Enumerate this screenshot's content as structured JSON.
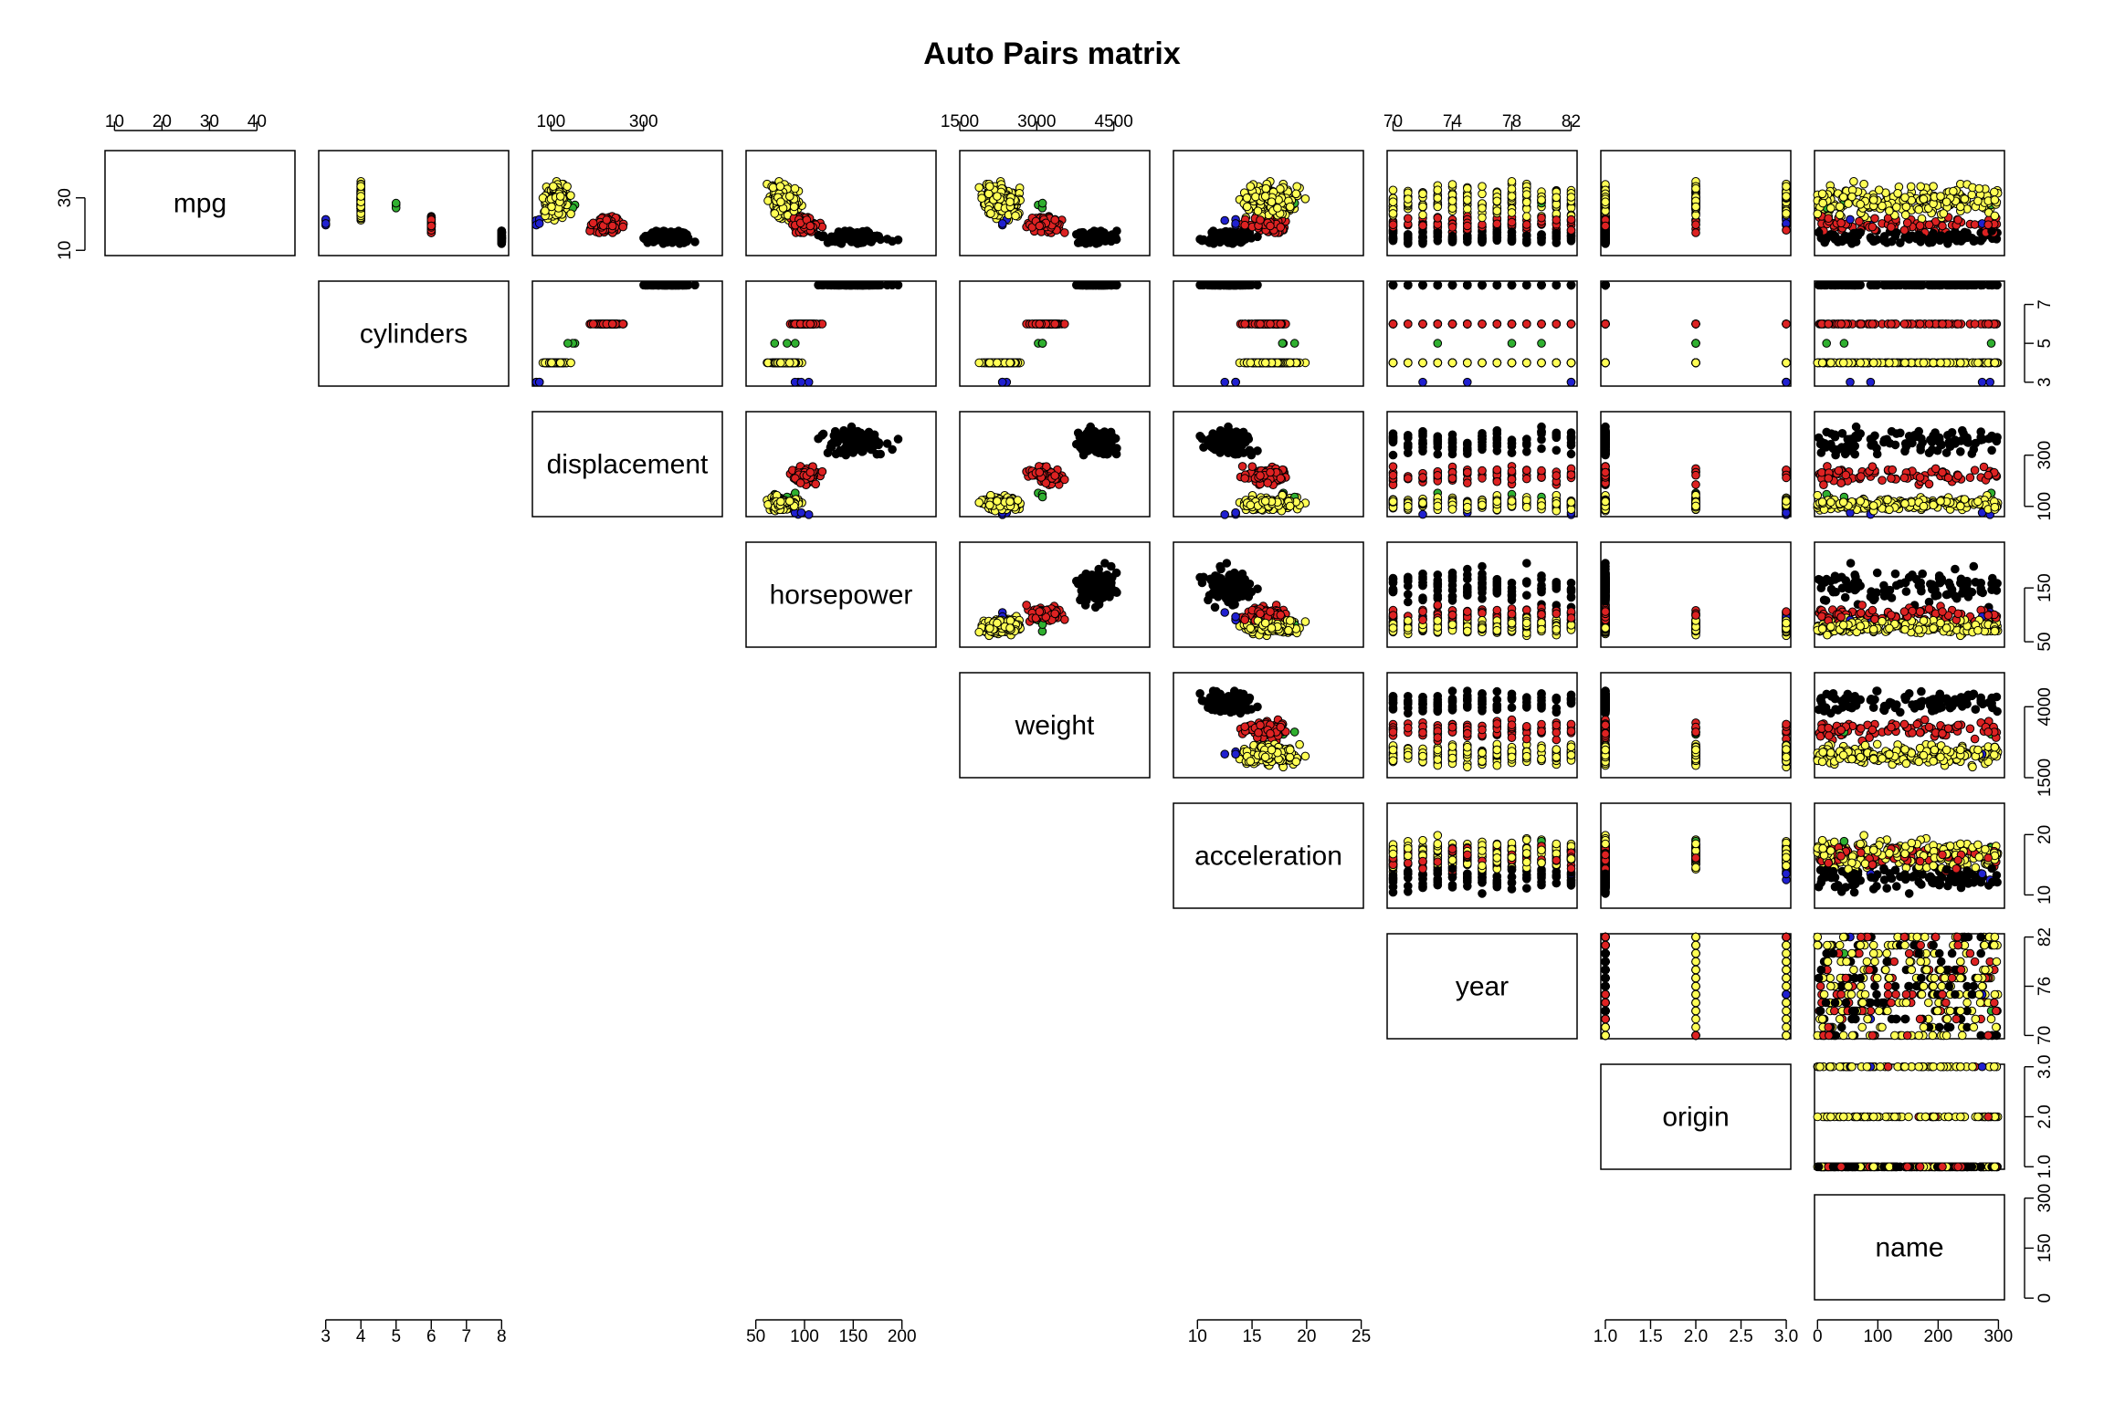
{
  "chart_data": {
    "type": "scatter",
    "title": "Auto Pairs matrix",
    "variables": [
      "mpg",
      "cylinders",
      "displacement",
      "horsepower",
      "weight",
      "acceleration",
      "year",
      "origin",
      "name"
    ],
    "axis_ranges": {
      "mpg": [
        8,
        48
      ],
      "cylinders": [
        2.8,
        8.2
      ],
      "displacement": [
        60,
        470
      ],
      "horsepower": [
        40,
        235
      ],
      "weight": [
        1500,
        5200
      ],
      "acceleration": [
        7.8,
        25.2
      ],
      "year": [
        69.6,
        82.4
      ],
      "origin": [
        0.95,
        3.05
      ],
      "name": [
        -5,
        310
      ]
    },
    "ticks": {
      "mpg": [
        10,
        20,
        30,
        40
      ],
      "cylinders": [
        3,
        4,
        5,
        6,
        7,
        8
      ],
      "displacement": [
        100,
        300
      ],
      "horsepower": [
        50,
        100,
        150,
        200
      ],
      "weight": [
        1500,
        3000,
        4500
      ],
      "acceleration": [
        10,
        15,
        20,
        25
      ],
      "year": [
        70,
        74,
        78,
        82
      ],
      "origin": [
        1.0,
        1.5,
        2.0,
        2.5,
        3.0
      ],
      "name": [
        0,
        100,
        200,
        300
      ]
    },
    "tick_labels": {
      "mpg": [
        "10",
        "20",
        "30",
        "40"
      ],
      "cylinders": [
        "3",
        "4",
        "5",
        "6",
        "7",
        "8"
      ],
      "displacement": [
        "100",
        "300"
      ],
      "horsepower": [
        "50",
        "100",
        "150",
        "200"
      ],
      "weight": [
        "1500",
        "3000",
        "4500"
      ],
      "acceleration": [
        "10",
        "15",
        "20",
        "25"
      ],
      "year": [
        "70",
        "74",
        "78",
        "82"
      ],
      "origin": [
        "1.0",
        "1.5",
        "2.0",
        "2.5",
        "3.0"
      ],
      "name": [
        "0",
        "100",
        "200",
        "300"
      ]
    },
    "left_ticks": {
      "mpg": [
        10,
        30
      ],
      "cylinders": [
        3,
        5,
        7
      ],
      "displacement": [
        100,
        300
      ],
      "horsepower": [
        50,
        150
      ],
      "weight": [
        1500,
        4000
      ],
      "acceleration": [
        10,
        20
      ],
      "year": [
        70,
        76,
        82
      ],
      "origin": [
        1.0,
        2.0,
        3.0
      ],
      "name": [
        0,
        150,
        300
      ]
    },
    "left_tick_labels": {
      "mpg": [
        "10",
        "30"
      ],
      "cylinders": [
        "3",
        "5",
        "7"
      ],
      "displacement": [
        "100",
        "300"
      ],
      "horsepower": [
        "50",
        "150"
      ],
      "weight": [
        "1500",
        "4000"
      ],
      "acceleration": [
        "10",
        "20"
      ],
      "year": [
        "70",
        "76",
        "82"
      ],
      "origin": [
        "1.0",
        "2.0",
        "3.0"
      ],
      "name": [
        "0",
        "150",
        "300"
      ]
    },
    "point_color_by": "cylinders",
    "colors": {
      "3": "#2020d0",
      "4": "#ffff55",
      "5": "#30b030",
      "6": "#dd2222",
      "8": "#000000"
    },
    "layout": "upper-triangle scatter panels, variable names on the diagonal",
    "grid": false,
    "legend": "none"
  }
}
